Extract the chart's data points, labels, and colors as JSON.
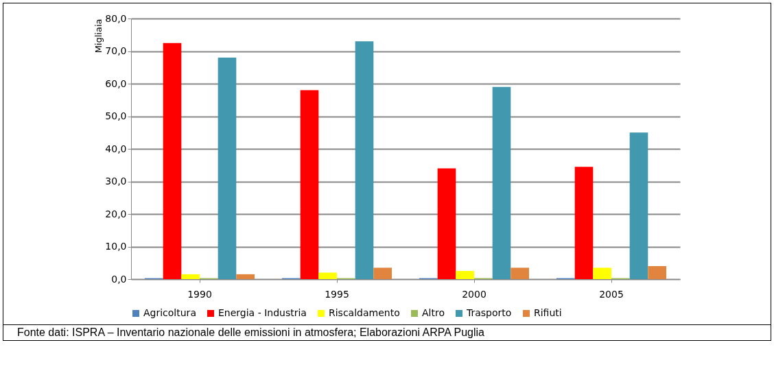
{
  "chart_data": {
    "type": "bar",
    "ylabel": "Migliaia",
    "categories": [
      "1990",
      "1995",
      "2000",
      "2005"
    ],
    "series": [
      {
        "name": "Agricoltura",
        "color": "#4f81bd",
        "values": [
          0.3,
          0.3,
          0.3,
          0.3
        ]
      },
      {
        "name": "Energia - Industria",
        "color": "#ff0000",
        "values": [
          72.5,
          58,
          34,
          34.5
        ]
      },
      {
        "name": "Riscaldamento",
        "color": "#ffff00",
        "values": [
          1.5,
          2,
          2.5,
          3.5
        ]
      },
      {
        "name": "Altro",
        "color": "#9bbb59",
        "values": [
          0.3,
          0.3,
          0.3,
          0.3
        ]
      },
      {
        "name": "Trasporto",
        "color": "#4198af",
        "values": [
          68,
          73,
          59,
          45
        ]
      },
      {
        "name": "Rifiuti",
        "color": "#e1843e",
        "values": [
          1.5,
          3.5,
          3.5,
          4
        ]
      }
    ],
    "ylim": [
      0,
      80
    ],
    "yticks": [
      {
        "value": 0,
        "label": "0,0"
      },
      {
        "value": 10,
        "label": "10,0"
      },
      {
        "value": 20,
        "label": "20,0"
      },
      {
        "value": 30,
        "label": "30,0"
      },
      {
        "value": 40,
        "label": "40,0"
      },
      {
        "value": 50,
        "label": "50,0"
      },
      {
        "value": 60,
        "label": "60,0"
      },
      {
        "value": 70,
        "label": "70,0"
      },
      {
        "value": 80,
        "label": "80,0"
      }
    ],
    "grid": "y",
    "legend": "bottom",
    "annotations": [
      "Fonte dati: ISPRA – Inventario nazionale delle emissioni in atmosfera; Elaborazioni ARPA Puglia"
    ]
  }
}
